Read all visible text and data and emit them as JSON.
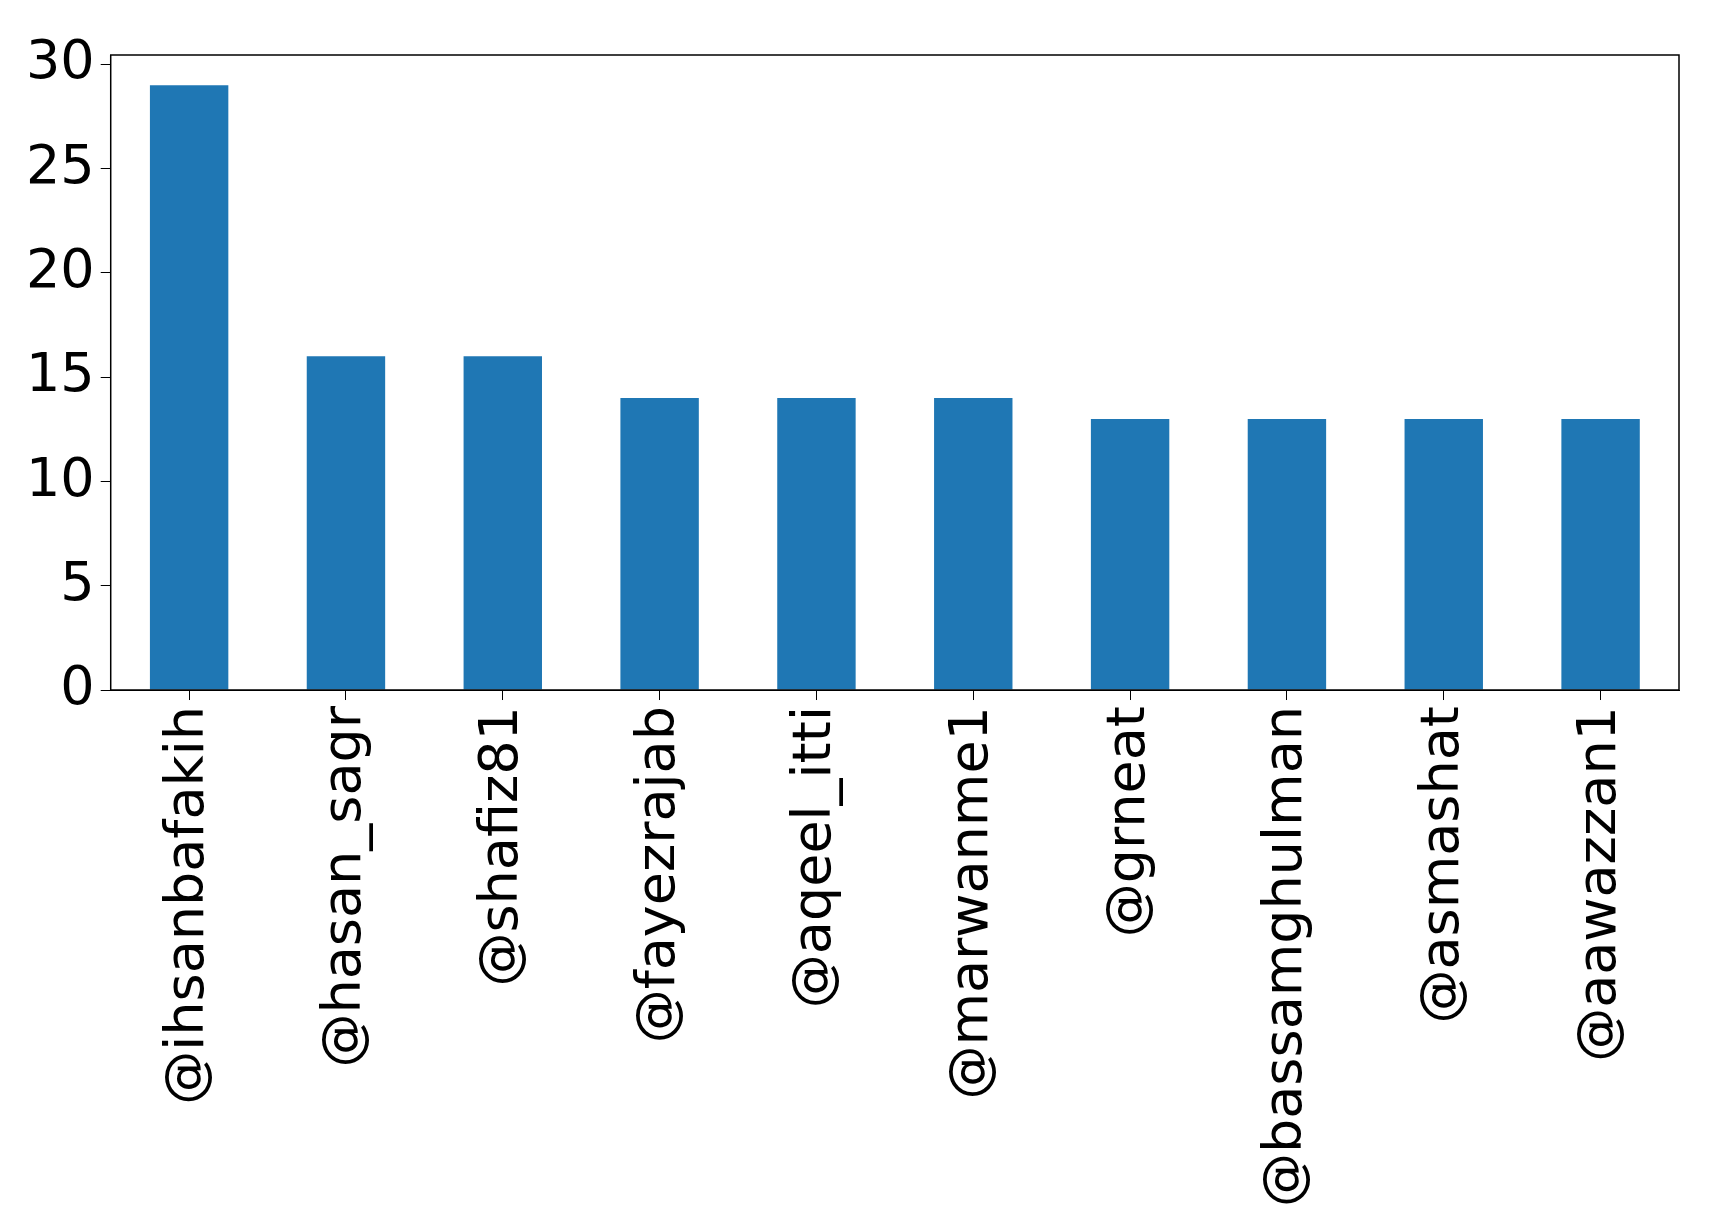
{
  "chart_data": {
    "type": "bar",
    "categories": [
      "@ihsanbafakih",
      "@hasan_sagr",
      "@shafiz81",
      "@fayezrajab",
      "@aqeel_itti",
      "@marwanme1",
      "@grneat",
      "@bassamghulman",
      "@asmashat",
      "@aawazzan1"
    ],
    "values": [
      29,
      16,
      16,
      14,
      14,
      14,
      13,
      13,
      13,
      13
    ],
    "color": "#1f77b4",
    "ylim": [
      0,
      30.45
    ],
    "yticks": [
      0,
      5,
      10,
      15,
      20,
      25,
      30
    ]
  }
}
